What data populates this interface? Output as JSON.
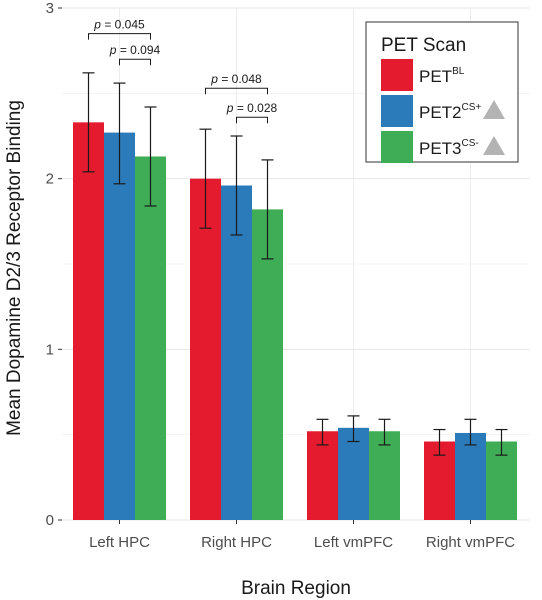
{
  "chart_data": {
    "type": "bar",
    "xlabel": "Brain Region",
    "ylabel": "Mean Dopamine D2/3 Receptor Binding",
    "ylim": [
      0,
      3
    ],
    "yticks": [
      "0",
      "1",
      "2",
      "3"
    ],
    "grid": true,
    "categories": [
      "Left HPC",
      "Right HPC",
      "Left vmPFC",
      "Right vmPFC"
    ],
    "series": [
      {
        "name": "PET",
        "sup": "BL",
        "marker": "",
        "color": "#e41a2e",
        "values": [
          2.33,
          2.0,
          0.52,
          0.46
        ],
        "err_low": [
          2.04,
          1.71,
          0.44,
          0.38
        ],
        "err_high": [
          2.62,
          2.29,
          0.59,
          0.53
        ]
      },
      {
        "name": "PET2",
        "sup": "CS+",
        "marker": "triangle",
        "color": "#2b7bba",
        "values": [
          2.27,
          1.96,
          0.54,
          0.51
        ],
        "err_low": [
          1.97,
          1.67,
          0.46,
          0.44
        ],
        "err_high": [
          2.56,
          2.25,
          0.61,
          0.59
        ]
      },
      {
        "name": "PET3",
        "sup": "CS-",
        "marker": "triangle",
        "color": "#3fad55",
        "values": [
          2.13,
          1.82,
          0.52,
          0.46
        ],
        "err_low": [
          1.84,
          1.53,
          0.44,
          0.38
        ],
        "err_high": [
          2.42,
          2.11,
          0.59,
          0.53
        ]
      }
    ],
    "legend": {
      "title": "PET Scan",
      "position": "top-right"
    },
    "annotations": [
      {
        "category": 0,
        "from": 0,
        "to": 2,
        "y": 2.85,
        "prefix": "p",
        "text": " = 0.045"
      },
      {
        "category": 0,
        "from": 1,
        "to": 2,
        "y": 2.7,
        "prefix": "p",
        "text": " = 0.094"
      },
      {
        "category": 1,
        "from": 0,
        "to": 2,
        "y": 2.53,
        "prefix": "p",
        "text": " = 0.048"
      },
      {
        "category": 1,
        "from": 1,
        "to": 2,
        "y": 2.36,
        "prefix": "p",
        "text": " = 0.028"
      }
    ]
  }
}
